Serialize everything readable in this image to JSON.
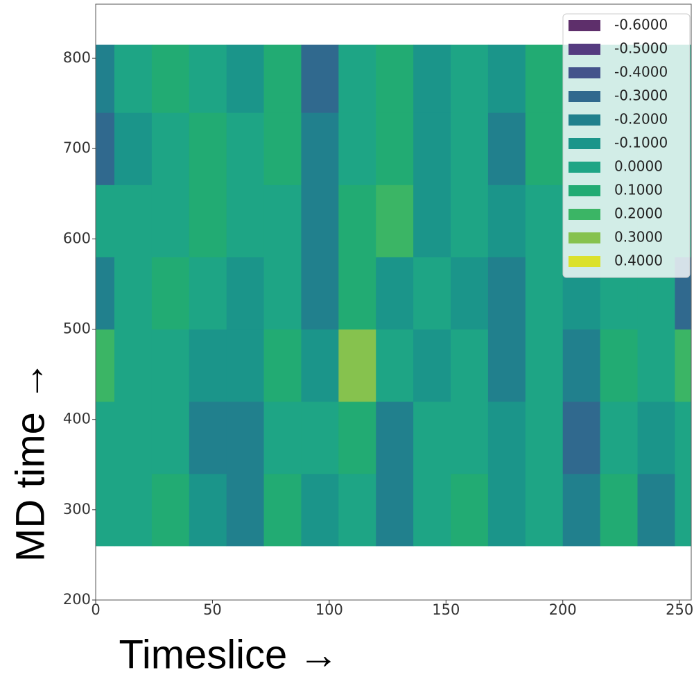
{
  "chart_data": {
    "type": "contour",
    "x_label": "Timeslice →",
    "y_label": "MD time →",
    "x": [
      0,
      16,
      32,
      48,
      64,
      80,
      96,
      112,
      128,
      144,
      160,
      176,
      192,
      208,
      224,
      240,
      256
    ],
    "y": [
      220,
      300,
      380,
      460,
      540,
      620,
      700,
      780,
      850
    ],
    "z": [
      [
        0.0,
        -0.1,
        0.0,
        0.0,
        -0.2,
        0.2,
        -0.1,
        0.0,
        -0.2,
        0.0,
        0.0,
        0.0,
        0.1,
        -0.2,
        0.0,
        -0.3,
        -0.1
      ],
      [
        0.0,
        0.0,
        0.1,
        -0.1,
        -0.2,
        0.1,
        -0.1,
        0.0,
        -0.2,
        0.0,
        0.1,
        -0.1,
        0.0,
        -0.2,
        0.1,
        -0.2,
        0.0
      ],
      [
        0.0,
        0.0,
        0.0,
        -0.2,
        -0.2,
        0.0,
        0.0,
        0.1,
        -0.2,
        0.0,
        0.0,
        -0.1,
        0.0,
        -0.3,
        0.0,
        -0.1,
        0.0
      ],
      [
        0.2,
        0.0,
        0.0,
        -0.1,
        -0.1,
        0.1,
        -0.1,
        0.3,
        0.0,
        -0.1,
        0.0,
        -0.2,
        0.0,
        -0.2,
        0.1,
        0.0,
        0.2
      ],
      [
        -0.2,
        0.0,
        0.1,
        0.0,
        -0.1,
        0.0,
        -0.2,
        0.1,
        -0.1,
        0.0,
        -0.1,
        -0.2,
        0.0,
        -0.1,
        0.0,
        0.0,
        -0.3
      ],
      [
        0.0,
        0.0,
        0.0,
        0.1,
        0.0,
        0.0,
        -0.2,
        0.1,
        0.2,
        -0.1,
        0.0,
        -0.1,
        0.0,
        0.0,
        0.0,
        0.0,
        0.0
      ],
      [
        -0.3,
        -0.1,
        0.0,
        0.1,
        0.0,
        0.1,
        -0.2,
        0.0,
        0.1,
        -0.1,
        0.0,
        -0.2,
        0.1,
        0.0,
        0.0,
        0.0,
        0.0
      ],
      [
        -0.2,
        0.0,
        0.1,
        0.0,
        -0.1,
        0.1,
        -0.3,
        0.0,
        0.1,
        -0.1,
        0.0,
        -0.1,
        0.1,
        0.0,
        0.0,
        0.0,
        0.0
      ],
      [
        -0.1,
        0.0,
        0.0,
        -0.1,
        0.0,
        0.1,
        -0.3,
        0.0,
        0.2,
        -0.4,
        0.0,
        -0.1,
        0.0,
        0.0,
        0.0,
        0.0,
        0.0
      ]
    ],
    "levels": [
      {
        "value": -0.6,
        "label": "-0.6000"
      },
      {
        "value": -0.5,
        "label": "-0.5000"
      },
      {
        "value": -0.4,
        "label": "-0.4000"
      },
      {
        "value": -0.3,
        "label": "-0.3000"
      },
      {
        "value": -0.2,
        "label": "-0.2000"
      },
      {
        "value": -0.1,
        "label": "-0.1000"
      },
      {
        "value": 0.0,
        "label": "0.0000"
      },
      {
        "value": 0.1,
        "label": "0.1000"
      },
      {
        "value": 0.2,
        "label": "0.2000"
      },
      {
        "value": 0.3,
        "label": "0.3000"
      },
      {
        "value": 0.4,
        "label": "0.4000"
      }
    ],
    "colors": [
      "#5e2f6b",
      "#553b80",
      "#44538b",
      "#30698e",
      "#21808d",
      "#1b958a",
      "#1ea585",
      "#22ab73",
      "#3bb565",
      "#86c24e",
      "#dbe12b"
    ],
    "xlim": [
      0,
      255
    ],
    "ylim": [
      200,
      860
    ],
    "xticks": [
      0,
      50,
      100,
      150,
      200,
      250
    ],
    "yticks": [
      200,
      300,
      400,
      500,
      600,
      700,
      800
    ],
    "legend": "upper right"
  }
}
